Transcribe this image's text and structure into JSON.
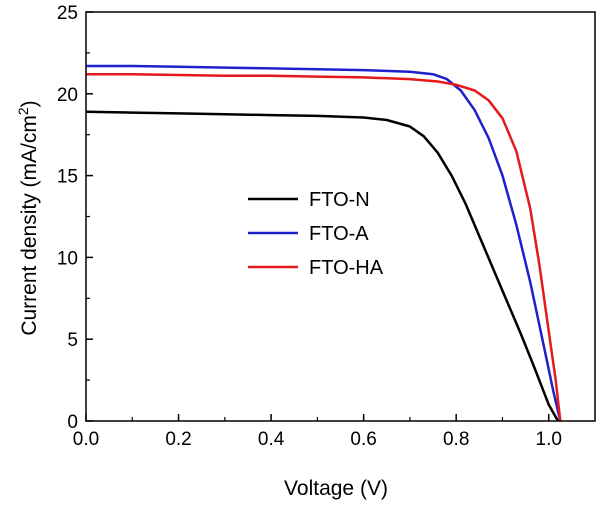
{
  "chart_data": {
    "type": "line",
    "title": "",
    "xlabel": "Voltage (V)",
    "ylabel_main": "Current density (mA/cm",
    "ylabel_sup": "2",
    "ylabel_close": ")",
    "xlim": [
      0.0,
      1.1
    ],
    "ylim": [
      0,
      25
    ],
    "xticks": [
      "0.0",
      "0.2",
      "0.4",
      "0.6",
      "0.8",
      "1.0"
    ],
    "yticks": [
      "0",
      "5",
      "10",
      "15",
      "20",
      "25"
    ],
    "grid": false,
    "legend_position": "center",
    "series": [
      {
        "name": "FTO-N",
        "color": "#000000",
        "x": [
          0.0,
          0.1,
          0.2,
          0.3,
          0.4,
          0.5,
          0.6,
          0.65,
          0.7,
          0.73,
          0.76,
          0.79,
          0.82,
          0.85,
          0.88,
          0.91,
          0.94,
          0.97,
          1.0,
          1.02
        ],
        "y": [
          18.9,
          18.85,
          18.8,
          18.75,
          18.7,
          18.65,
          18.55,
          18.4,
          18.0,
          17.4,
          16.4,
          15.0,
          13.3,
          11.3,
          9.3,
          7.3,
          5.3,
          3.2,
          1.0,
          0.0
        ]
      },
      {
        "name": "FTO-A",
        "color": "#1f1fcc",
        "x": [
          0.0,
          0.1,
          0.2,
          0.3,
          0.4,
          0.5,
          0.6,
          0.7,
          0.75,
          0.78,
          0.81,
          0.84,
          0.87,
          0.9,
          0.93,
          0.96,
          0.99,
          1.01,
          1.025
        ],
        "y": [
          21.7,
          21.7,
          21.65,
          21.6,
          21.55,
          21.5,
          21.45,
          21.35,
          21.2,
          20.9,
          20.2,
          19.0,
          17.3,
          15.0,
          12.0,
          8.5,
          4.5,
          1.8,
          0.0
        ]
      },
      {
        "name": "FTO-HA",
        "color": "#e41a1c",
        "x": [
          0.0,
          0.1,
          0.2,
          0.3,
          0.4,
          0.5,
          0.6,
          0.7,
          0.76,
          0.8,
          0.84,
          0.87,
          0.9,
          0.93,
          0.96,
          0.98,
          1.0,
          1.015,
          1.025
        ],
        "y": [
          21.2,
          21.2,
          21.15,
          21.1,
          21.1,
          21.05,
          21.0,
          20.9,
          20.75,
          20.55,
          20.2,
          19.6,
          18.5,
          16.5,
          13.0,
          9.5,
          5.5,
          2.5,
          0.0
        ]
      }
    ]
  }
}
